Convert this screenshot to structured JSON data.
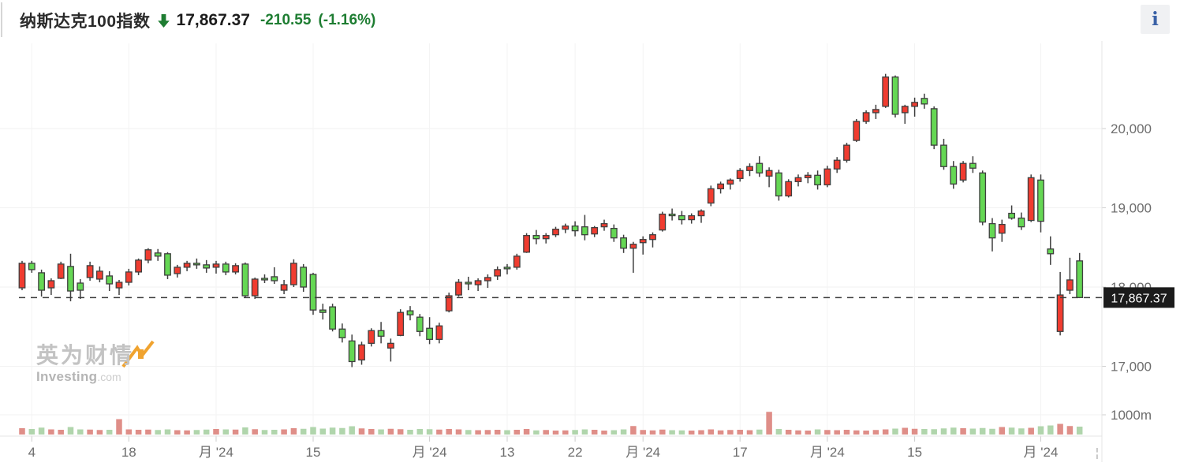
{
  "header": {
    "title": "纳斯达克100指数",
    "direction": "down",
    "price": "17,867.37",
    "change": "-210.55",
    "change_percent": "(-1.16%)",
    "accent_green": "#1e7d32"
  },
  "info_button": {
    "label": "i"
  },
  "watermark": {
    "line1": "英为财情",
    "line2_bold": "Investing",
    "line2_suffix": ".com"
  },
  "chart_data": {
    "type": "candlestick",
    "instrument": "纳斯达克100指数",
    "timeframe": "daily",
    "y_axis": {
      "ticks": [
        20000,
        19000,
        18000,
        17000
      ],
      "tick_labels": [
        "20,000",
        "19,000",
        "18,000",
        "17,000"
      ]
    },
    "volume_axis": {
      "tick": 1000,
      "tick_label": "1000m",
      "unit": "millions"
    },
    "price_line": {
      "value": 17867.37,
      "label": "17,867.37"
    },
    "x_axis_ticks": [
      {
        "index": 1,
        "label": "4"
      },
      {
        "index": 11,
        "label": "18"
      },
      {
        "index": 20,
        "label": "月 '24"
      },
      {
        "index": 30,
        "label": "15"
      },
      {
        "index": 42,
        "label": "月 '24"
      },
      {
        "index": 50,
        "label": "13"
      },
      {
        "index": 57,
        "label": "22"
      },
      {
        "index": 64,
        "label": "月 '24"
      },
      {
        "index": 74,
        "label": "17"
      },
      {
        "index": 83,
        "label": "月 '24"
      },
      {
        "index": 92,
        "label": "15"
      },
      {
        "index": 105,
        "label": "月 '24"
      }
    ],
    "x_axis_clipped_label": "¦",
    "colors": {
      "up_fill": "#f03c30",
      "down_fill": "#65d754",
      "candle_border": "#3f3f3f",
      "volume_up": "#df8e88",
      "volume_down": "#b0d5ac",
      "grid": "#f2f2f2",
      "axis_text": "#6d6d6d",
      "price_tag_bg": "#1b1b1b"
    },
    "columns": [
      "date",
      "open",
      "high",
      "low",
      "close",
      "volume_m"
    ],
    "rows": [
      [
        "2024-03-01",
        17990,
        18330,
        17960,
        18300,
        320
      ],
      [
        "2024-03-04",
        18300,
        18330,
        18180,
        18220,
        280
      ],
      [
        "2024-03-05",
        18180,
        18220,
        17880,
        17960,
        350
      ],
      [
        "2024-03-06",
        17990,
        18110,
        17900,
        18080,
        260
      ],
      [
        "2024-03-07",
        18110,
        18320,
        18100,
        18290,
        240
      ],
      [
        "2024-03-08",
        18260,
        18420,
        17820,
        17950,
        380
      ],
      [
        "2024-03-11",
        18050,
        18100,
        17850,
        17960,
        260
      ],
      [
        "2024-03-12",
        18120,
        18320,
        18080,
        18270,
        250
      ],
      [
        "2024-03-13",
        18100,
        18260,
        18060,
        18200,
        230
      ],
      [
        "2024-03-14",
        18140,
        18200,
        17950,
        18040,
        240
      ],
      [
        "2024-03-15",
        17990,
        18090,
        17900,
        18060,
        780
      ],
      [
        "2024-03-18",
        18060,
        18230,
        18020,
        18190,
        260
      ],
      [
        "2024-03-19",
        18190,
        18360,
        18150,
        18340,
        240
      ],
      [
        "2024-03-20",
        18340,
        18490,
        18300,
        18470,
        250
      ],
      [
        "2024-03-21",
        18430,
        18480,
        18330,
        18390,
        230
      ],
      [
        "2024-03-22",
        18420,
        18440,
        18100,
        18150,
        260
      ],
      [
        "2024-03-25",
        18170,
        18280,
        18120,
        18250,
        220
      ],
      [
        "2024-03-26",
        18250,
        18330,
        18200,
        18300,
        210
      ],
      [
        "2024-03-27",
        18300,
        18360,
        18230,
        18280,
        230
      ],
      [
        "2024-03-28",
        18280,
        18340,
        18180,
        18240,
        250
      ],
      [
        "2024-04-01",
        18250,
        18330,
        18170,
        18290,
        280
      ],
      [
        "2024-04-02",
        18290,
        18320,
        18150,
        18190,
        260
      ],
      [
        "2024-04-03",
        18190,
        18300,
        18160,
        18270,
        250
      ],
      [
        "2024-04-04",
        18290,
        18310,
        17870,
        17890,
        360
      ],
      [
        "2024-04-05",
        17890,
        18120,
        17850,
        18100,
        270
      ],
      [
        "2024-04-08",
        18110,
        18160,
        18050,
        18100,
        230
      ],
      [
        "2024-04-09",
        18130,
        18250,
        18040,
        18080,
        240
      ],
      [
        "2024-04-10",
        17960,
        18090,
        17910,
        18030,
        260
      ],
      [
        "2024-04-11",
        18030,
        18350,
        18000,
        18300,
        320
      ],
      [
        "2024-04-12",
        18250,
        18290,
        17940,
        18000,
        290
      ],
      [
        "2024-04-15",
        18160,
        18180,
        17650,
        17710,
        380
      ],
      [
        "2024-04-16",
        17710,
        17790,
        17590,
        17680,
        300
      ],
      [
        "2024-04-17",
        17750,
        17790,
        17440,
        17470,
        350
      ],
      [
        "2024-04-18",
        17470,
        17540,
        17300,
        17360,
        330
      ],
      [
        "2024-04-19",
        17320,
        17400,
        16990,
        17060,
        420
      ],
      [
        "2024-04-22",
        17080,
        17310,
        17020,
        17270,
        310
      ],
      [
        "2024-04-23",
        17290,
        17480,
        17250,
        17450,
        280
      ],
      [
        "2024-04-24",
        17450,
        17560,
        17290,
        17380,
        260
      ],
      [
        "2024-04-25",
        17230,
        17350,
        17060,
        17290,
        290
      ],
      [
        "2024-04-26",
        17390,
        17720,
        17380,
        17680,
        270
      ],
      [
        "2024-04-29",
        17700,
        17760,
        17580,
        17650,
        240
      ],
      [
        "2024-04-30",
        17620,
        17660,
        17380,
        17440,
        280
      ],
      [
        "2024-05-01",
        17480,
        17620,
        17280,
        17340,
        270
      ],
      [
        "2024-05-02",
        17340,
        17550,
        17290,
        17510,
        250
      ],
      [
        "2024-05-03",
        17700,
        17930,
        17680,
        17890,
        280
      ],
      [
        "2024-05-06",
        17900,
        18100,
        17880,
        18060,
        260
      ],
      [
        "2024-05-07",
        18060,
        18130,
        17960,
        18050,
        230
      ],
      [
        "2024-05-08",
        18030,
        18110,
        17950,
        18080,
        220
      ],
      [
        "2024-05-09",
        18080,
        18160,
        17990,
        18120,
        230
      ],
      [
        "2024-05-10",
        18140,
        18260,
        18090,
        18220,
        240
      ],
      [
        "2024-05-13",
        18250,
        18290,
        18160,
        18240,
        220
      ],
      [
        "2024-05-14",
        18250,
        18420,
        18220,
        18390,
        240
      ],
      [
        "2024-05-15",
        18440,
        18680,
        18430,
        18650,
        280
      ],
      [
        "2024-05-16",
        18650,
        18720,
        18540,
        18610,
        210
      ],
      [
        "2024-05-17",
        18610,
        18680,
        18550,
        18650,
        230
      ],
      [
        "2024-05-20",
        18660,
        18760,
        18630,
        18730,
        200
      ],
      [
        "2024-05-21",
        18730,
        18800,
        18680,
        18770,
        210
      ],
      [
        "2024-05-22",
        18770,
        18830,
        18640,
        18710,
        230
      ],
      [
        "2024-05-23",
        18760,
        18910,
        18590,
        18660,
        260
      ],
      [
        "2024-05-24",
        18670,
        18770,
        18630,
        18750,
        240
      ],
      [
        "2024-05-28",
        18760,
        18850,
        18710,
        18800,
        200
      ],
      [
        "2024-05-29",
        18740,
        18790,
        18570,
        18620,
        220
      ],
      [
        "2024-05-30",
        18620,
        18660,
        18430,
        18490,
        260
      ],
      [
        "2024-05-31",
        18490,
        18570,
        18180,
        18540,
        430
      ],
      [
        "2024-06-03",
        18560,
        18640,
        18410,
        18600,
        230
      ],
      [
        "2024-06-04",
        18600,
        18690,
        18500,
        18660,
        210
      ],
      [
        "2024-06-05",
        18720,
        18950,
        18700,
        18920,
        250
      ],
      [
        "2024-06-06",
        18920,
        18990,
        18840,
        18900,
        220
      ],
      [
        "2024-06-07",
        18900,
        18960,
        18790,
        18850,
        210
      ],
      [
        "2024-06-10",
        18850,
        18930,
        18800,
        18900,
        200
      ],
      [
        "2024-06-11",
        18900,
        18980,
        18810,
        18960,
        220
      ],
      [
        "2024-06-12",
        19060,
        19280,
        19020,
        19240,
        260
      ],
      [
        "2024-06-13",
        19240,
        19330,
        19180,
        19300,
        210
      ],
      [
        "2024-06-14",
        19300,
        19370,
        19230,
        19350,
        230
      ],
      [
        "2024-06-17",
        19370,
        19500,
        19330,
        19470,
        240
      ],
      [
        "2024-06-18",
        19470,
        19560,
        19400,
        19520,
        220
      ],
      [
        "2024-06-20",
        19560,
        19650,
        19390,
        19440,
        250
      ],
      [
        "2024-06-21",
        19400,
        19510,
        19260,
        19470,
        1150
      ],
      [
        "2024-06-24",
        19440,
        19480,
        19090,
        19150,
        280
      ],
      [
        "2024-06-25",
        19150,
        19360,
        19130,
        19330,
        240
      ],
      [
        "2024-06-26",
        19330,
        19420,
        19270,
        19380,
        210
      ],
      [
        "2024-06-27",
        19380,
        19450,
        19310,
        19410,
        200
      ],
      [
        "2024-06-28",
        19410,
        19470,
        19230,
        19290,
        260
      ],
      [
        "2024-07-01",
        19290,
        19530,
        19260,
        19490,
        230
      ],
      [
        "2024-07-02",
        19490,
        19640,
        19440,
        19600,
        220
      ],
      [
        "2024-07-03",
        19600,
        19820,
        19570,
        19790,
        240
      ],
      [
        "2024-07-05",
        19850,
        20120,
        19830,
        20090,
        210
      ],
      [
        "2024-07-08",
        20090,
        20230,
        20060,
        20200,
        200
      ],
      [
        "2024-07-09",
        20200,
        20300,
        20120,
        20240,
        230
      ],
      [
        "2024-07-10",
        20280,
        20690,
        20260,
        20650,
        260
      ],
      [
        "2024-07-11",
        20650,
        20670,
        20140,
        20180,
        300
      ],
      [
        "2024-07-12",
        20200,
        20300,
        20060,
        20280,
        340
      ],
      [
        "2024-07-15",
        20280,
        20390,
        20150,
        20330,
        290
      ],
      [
        "2024-07-16",
        20380,
        20440,
        20250,
        20310,
        280
      ],
      [
        "2024-07-17",
        20250,
        20280,
        19740,
        19790,
        270
      ],
      [
        "2024-07-18",
        19790,
        19870,
        19480,
        19520,
        310
      ],
      [
        "2024-07-19",
        19520,
        19590,
        19240,
        19300,
        350
      ],
      [
        "2024-07-22",
        19350,
        19590,
        19320,
        19560,
        320
      ],
      [
        "2024-07-23",
        19560,
        19650,
        19440,
        19500,
        300
      ],
      [
        "2024-07-24",
        19440,
        19470,
        18780,
        18820,
        330
      ],
      [
        "2024-07-25",
        18800,
        18870,
        18450,
        18620,
        290
      ],
      [
        "2024-07-26",
        18680,
        18850,
        18570,
        18790,
        380
      ],
      [
        "2024-07-29",
        18930,
        19030,
        18850,
        18870,
        350
      ],
      [
        "2024-07-30",
        18870,
        18940,
        18720,
        18760,
        310
      ],
      [
        "2024-07-31",
        18840,
        19420,
        18820,
        19380,
        340
      ],
      [
        "2024-08-01",
        19350,
        19420,
        18690,
        18830,
        420
      ],
      [
        "2024-08-02",
        18480,
        18640,
        18280,
        18420,
        460
      ],
      [
        "2024-08-05",
        17440,
        18190,
        17390,
        17900,
        540
      ],
      [
        "2024-08-06",
        17960,
        18370,
        17910,
        18090,
        430
      ],
      [
        "2024-08-07",
        18330,
        18430,
        17860,
        17867.37,
        400
      ]
    ]
  }
}
